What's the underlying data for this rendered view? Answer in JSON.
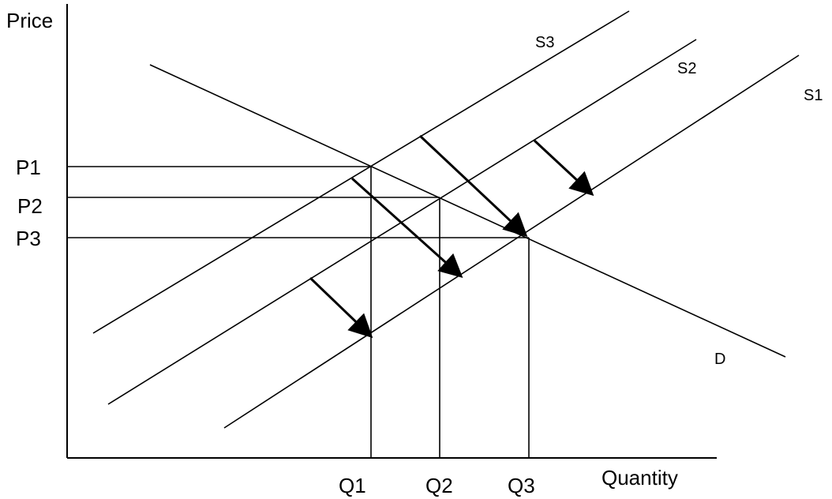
{
  "axes": {
    "y_label": "Price",
    "x_label": "Quantity"
  },
  "price_labels": [
    "P1",
    "P2",
    "P3"
  ],
  "quantity_labels": [
    "Q1",
    "Q2",
    "Q3"
  ],
  "curves": {
    "demand": "D",
    "supply_1": "S1",
    "supply_2": "S2",
    "supply_3": "S3"
  },
  "colors": {
    "line": "#000000",
    "background": "#ffffff"
  }
}
